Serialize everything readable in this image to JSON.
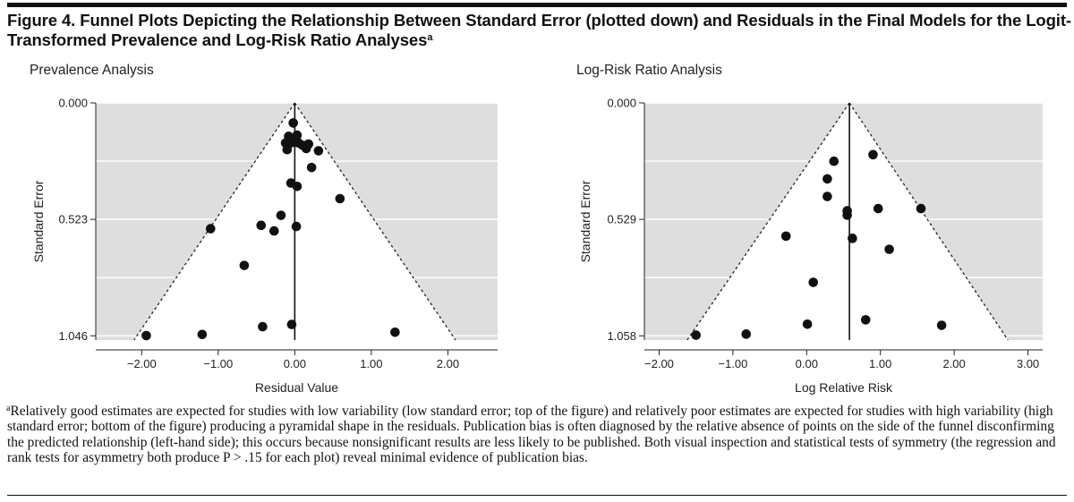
{
  "figure": {
    "title": "Figure 4. Funnel Plots Depicting the Relationship Between Standard Error (plotted down) and Residuals in the Final Models for the Logit-Transformed Prevalence and Log-Risk Ratio Analyses",
    "title_sup": "a",
    "footnote_marker": "a",
    "footnote": "Relatively good estimates are expected for studies with low variability (low standard error; top of the figure) and relatively poor estimates are expected for studies with high variability (high standard error; bottom of the figure) producing a pyramidal shape in the residuals. Publication bias is often diagnosed by the relative absence of points on the side of the funnel disconfirming the predicted relationship (left-hand side); this occurs because nonsignificant results are less likely to be published. Both visual inspection and statistical tests of symmetry (the regression and rank tests for asymmetry both produce P > .15 for each plot) reveal minimal evidence of publication bias."
  },
  "chart_data": [
    {
      "type": "scatter",
      "title": "Prevalence Analysis",
      "xlabel": "Residual Value",
      "ylabel": "Standard Error",
      "xlim": [
        -2.6,
        2.65
      ],
      "ylim": [
        0.0,
        1.065
      ],
      "y_inverted": true,
      "xticks": [
        -2.0,
        -1.0,
        0.0,
        1.0,
        2.0
      ],
      "xtick_labels": [
        "−2.00",
        "−1.00",
        "0.00",
        "1.00",
        "2.00"
      ],
      "yticks": [
        0.0,
        0.523,
        1.046
      ],
      "ytick_labels": [
        "0.000",
        "0.523",
        "1.046"
      ],
      "center_line_x": 0.0,
      "funnel": {
        "apex": [
          0.0,
          0.0
        ],
        "base_left": [
          -2.1,
          1.065
        ],
        "base_right": [
          2.1,
          1.065
        ]
      },
      "background": "#dedede",
      "points": [
        {
          "x": -0.02,
          "y": 0.09
        },
        {
          "x": -0.08,
          "y": 0.15
        },
        {
          "x": 0.03,
          "y": 0.145
        },
        {
          "x": -0.12,
          "y": 0.18
        },
        {
          "x": -0.05,
          "y": 0.18
        },
        {
          "x": 0.0,
          "y": 0.175
        },
        {
          "x": 0.05,
          "y": 0.18
        },
        {
          "x": 0.1,
          "y": 0.19
        },
        {
          "x": 0.15,
          "y": 0.205
        },
        {
          "x": 0.18,
          "y": 0.185
        },
        {
          "x": 0.31,
          "y": 0.215
        },
        {
          "x": -0.1,
          "y": 0.21
        },
        {
          "x": 0.22,
          "y": 0.29
        },
        {
          "x": -0.05,
          "y": 0.36
        },
        {
          "x": 0.03,
          "y": 0.375
        },
        {
          "x": 0.59,
          "y": 0.43
        },
        {
          "x": -0.18,
          "y": 0.505
        },
        {
          "x": -0.27,
          "y": 0.575
        },
        {
          "x": -0.44,
          "y": 0.55
        },
        {
          "x": 0.02,
          "y": 0.555
        },
        {
          "x": -1.1,
          "y": 0.565
        },
        {
          "x": -0.66,
          "y": 0.73
        },
        {
          "x": -0.42,
          "y": 1.005
        },
        {
          "x": -0.04,
          "y": 0.995
        },
        {
          "x": -1.21,
          "y": 1.04
        },
        {
          "x": -1.94,
          "y": 1.045
        },
        {
          "x": 1.31,
          "y": 1.03
        }
      ]
    },
    {
      "type": "scatter",
      "title": "Log-Risk Ratio Analysis",
      "xlabel": "Log Relative Risk",
      "ylabel": "Standard Error",
      "xlim": [
        -2.2,
        3.2
      ],
      "ylim": [
        0.0,
        1.077
      ],
      "y_inverted": true,
      "xticks": [
        -2.0,
        -1.0,
        0.0,
        1.0,
        2.0,
        3.0
      ],
      "xtick_labels": [
        "−2.00",
        "−1.00",
        "0.00",
        "1.00",
        "2.00",
        "3.00"
      ],
      "yticks": [
        0.0,
        0.529,
        1.058
      ],
      "ytick_labels": [
        "0.000",
        "0.529",
        "1.058"
      ],
      "center_line_x": 0.58,
      "funnel": {
        "apex": [
          0.58,
          0.0
        ],
        "base_left": [
          -1.62,
          1.077
        ],
        "base_right": [
          2.73,
          1.077
        ]
      },
      "background": "#dedede",
      "points": [
        {
          "x": 0.9,
          "y": 0.235
        },
        {
          "x": 0.37,
          "y": 0.265
        },
        {
          "x": 0.28,
          "y": 0.345
        },
        {
          "x": 0.28,
          "y": 0.425
        },
        {
          "x": 1.55,
          "y": 0.48
        },
        {
          "x": 0.97,
          "y": 0.48
        },
        {
          "x": 0.55,
          "y": 0.49
        },
        {
          "x": 0.55,
          "y": 0.51
        },
        {
          "x": 0.62,
          "y": 0.615
        },
        {
          "x": -0.28,
          "y": 0.605
        },
        {
          "x": 1.12,
          "y": 0.665
        },
        {
          "x": 0.09,
          "y": 0.815
        },
        {
          "x": 0.8,
          "y": 0.985
        },
        {
          "x": 0.01,
          "y": 1.005
        },
        {
          "x": 1.83,
          "y": 1.01
        },
        {
          "x": -0.82,
          "y": 1.05
        },
        {
          "x": -1.5,
          "y": 1.055
        }
      ]
    }
  ]
}
